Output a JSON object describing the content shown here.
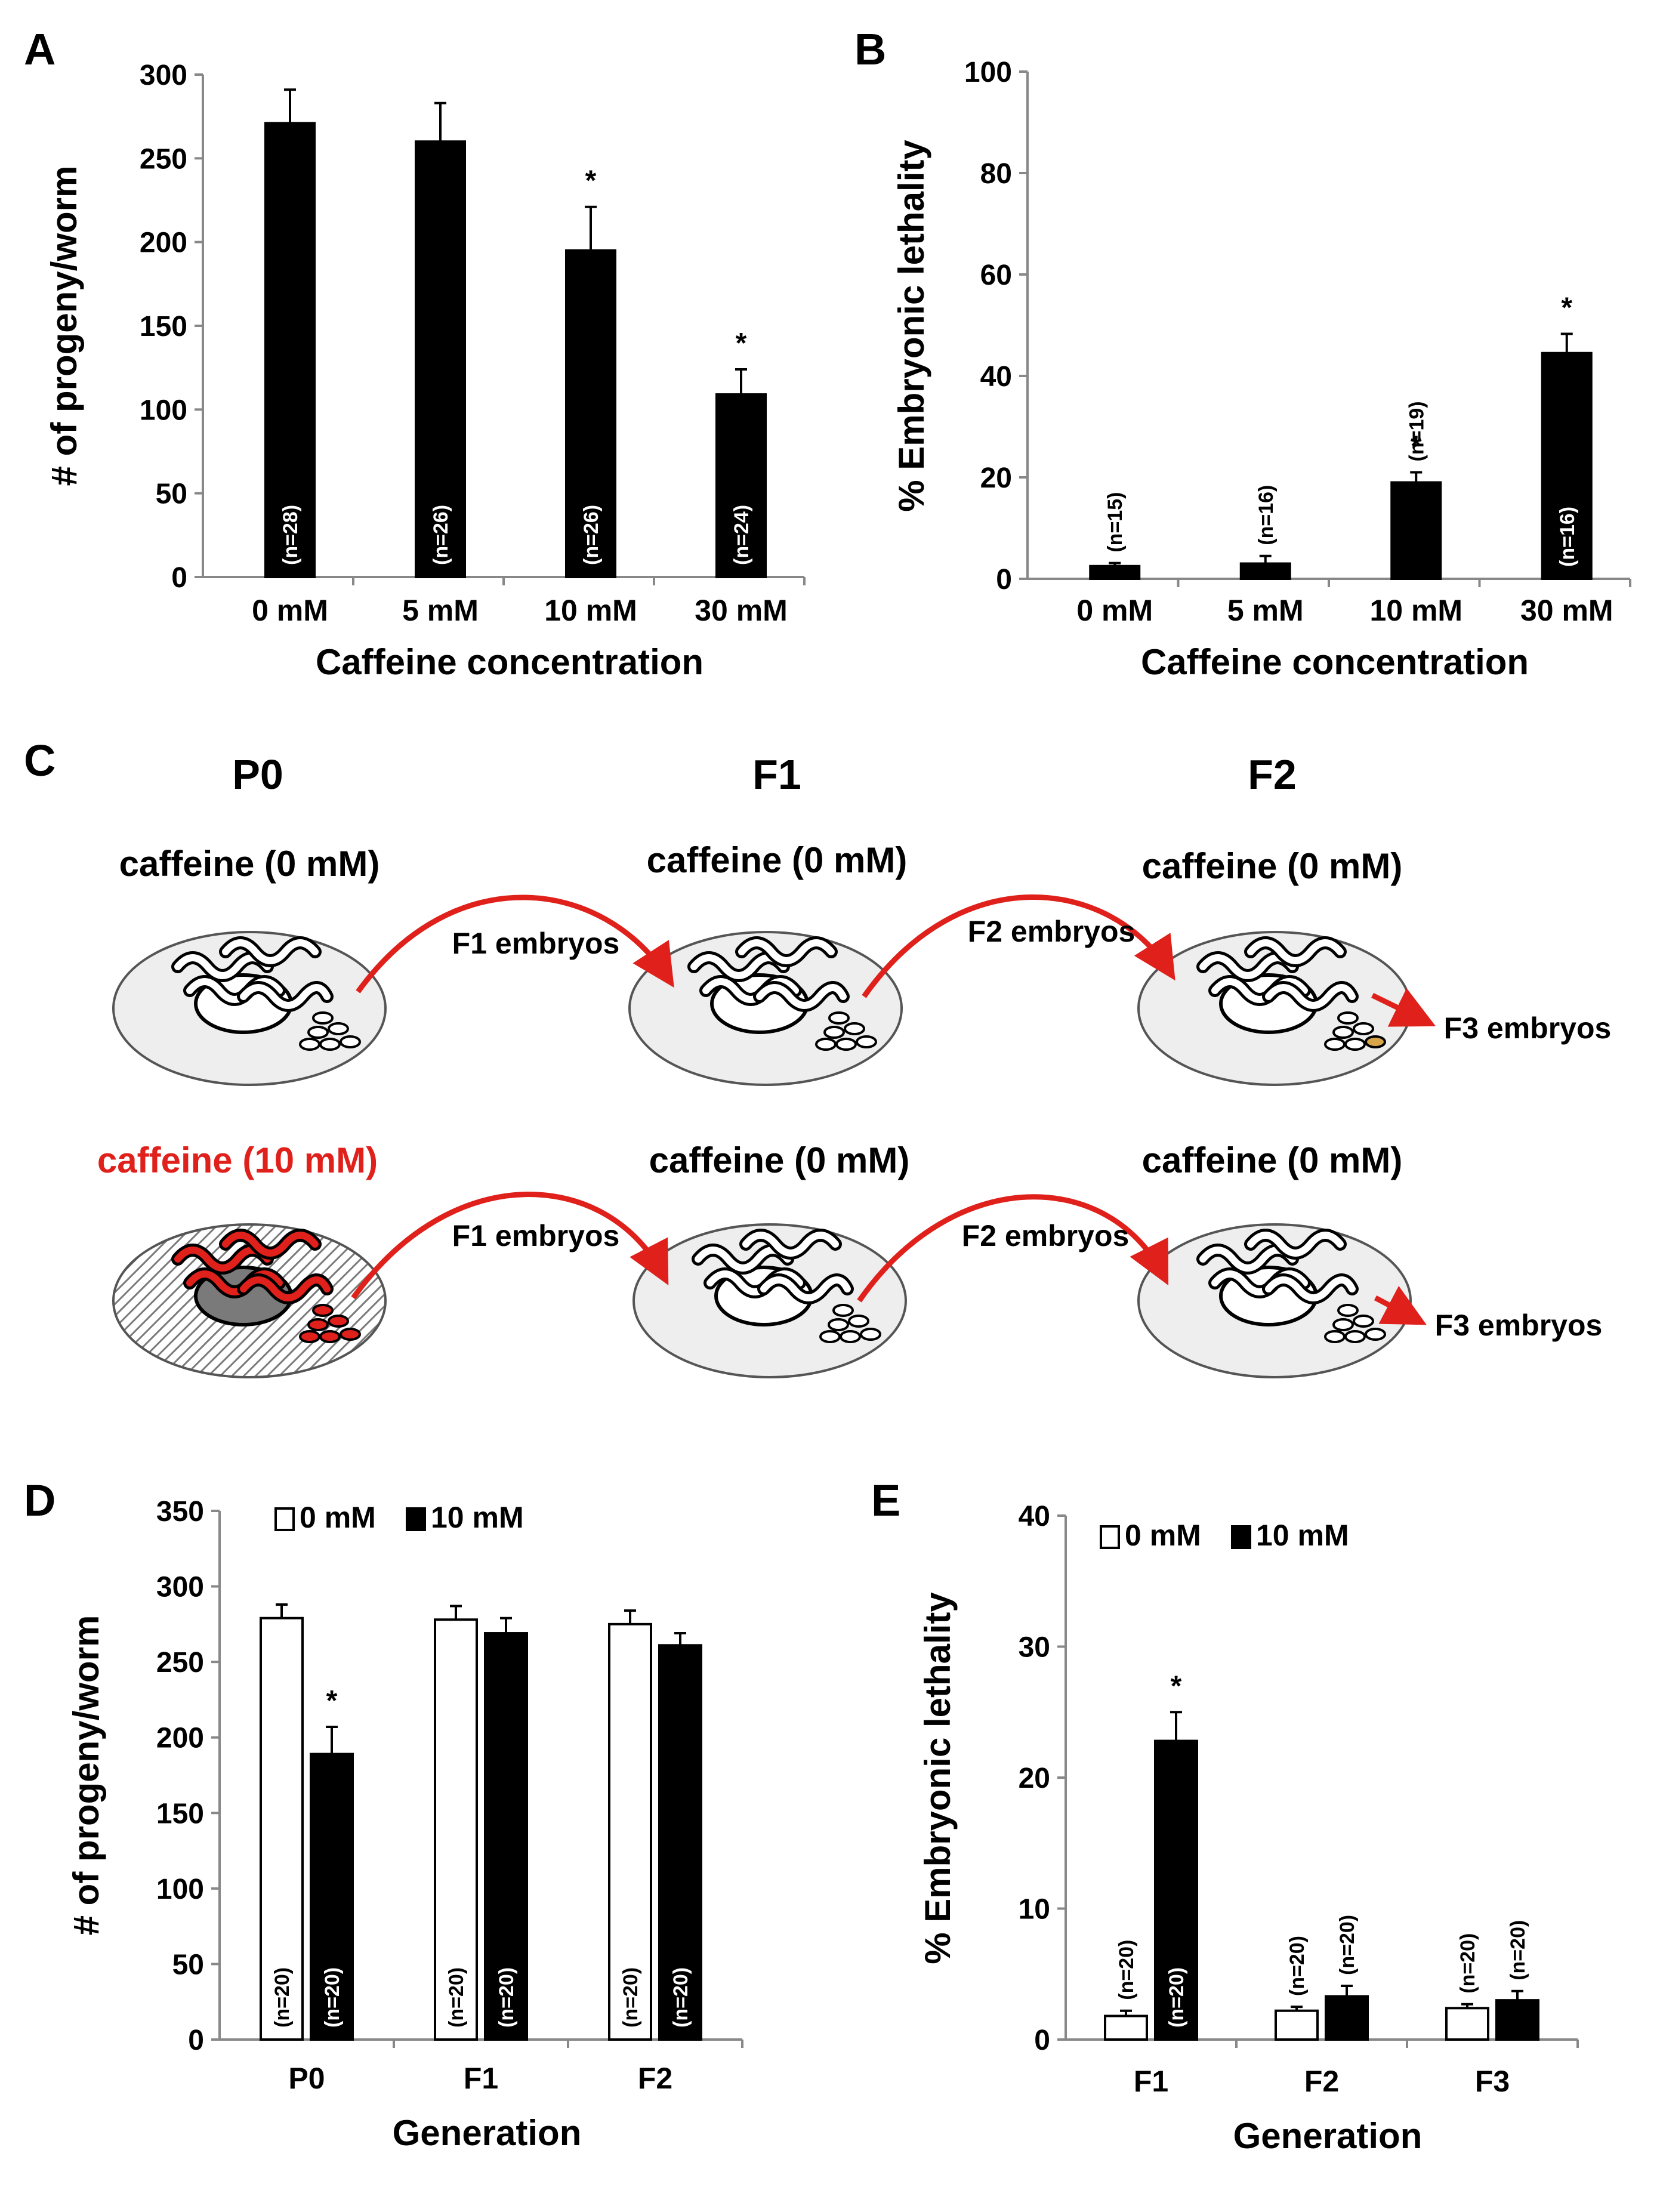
{
  "chart_data": [
    {
      "panel": "A",
      "type": "bar",
      "categories": [
        "0 mM",
        "5 mM",
        "10 mM",
        "30 mM"
      ],
      "values": [
        271,
        260,
        195,
        109
      ],
      "errors": [
        20,
        23,
        26,
        15
      ],
      "n_labels": [
        "(n=28)",
        "(n=26)",
        "(n=26)",
        "(n=24)"
      ],
      "significant": [
        false,
        false,
        true,
        true
      ],
      "xlabel": "Caffeine concentration",
      "ylabel": "# of progeny/worm",
      "ylim": [
        0,
        300
      ],
      "yticks": [
        "0",
        "50",
        "100",
        "150",
        "200",
        "250",
        "300"
      ],
      "bar_color": "#000000"
    },
    {
      "panel": "B",
      "type": "bar",
      "categories": [
        "0 mM",
        "5 mM",
        "10 mM",
        "30 mM"
      ],
      "values": [
        2.5,
        3,
        19,
        44.5
      ],
      "errors": [
        0.6,
        1.5,
        2,
        3.8
      ],
      "n_labels": [
        "(n=15)",
        "(n=16)",
        "(n=19)",
        "(n=16)"
      ],
      "significant": [
        false,
        false,
        true,
        true
      ],
      "xlabel": "Caffeine concentration",
      "ylabel": "% Embryonic lethality",
      "ylim": [
        0,
        100
      ],
      "yticks": [
        "0",
        "20",
        "40",
        "60",
        "80",
        "100"
      ],
      "bar_color": "#000000"
    },
    {
      "panel": "D",
      "type": "bar",
      "categories": [
        "P0",
        "F1",
        "F2"
      ],
      "series": [
        {
          "name": "0 mM",
          "values": [
            279,
            278,
            275
          ],
          "errors": [
            9,
            9,
            9
          ],
          "color": "#ffffff",
          "n_labels": [
            "(n=20)",
            "(n=20)",
            "(n=20)"
          ],
          "significant": [
            false,
            false,
            false
          ]
        },
        {
          "name": "10 mM",
          "values": [
            189,
            269,
            261
          ],
          "errors": [
            18,
            10,
            8
          ],
          "color": "#000000",
          "n_labels": [
            "(n=20)",
            "(n=20)",
            "(n=20)"
          ],
          "significant": [
            true,
            false,
            false
          ]
        }
      ],
      "xlabel": "Generation",
      "ylabel": "# of progeny/worm",
      "ylim": [
        0,
        350
      ],
      "yticks": [
        "0",
        "50",
        "100",
        "150",
        "200",
        "250",
        "300",
        "350"
      ],
      "legend": "top-left"
    },
    {
      "panel": "E",
      "type": "bar",
      "categories": [
        "F1",
        "F2",
        "F3"
      ],
      "series": [
        {
          "name": "0 mM",
          "values": [
            1.8,
            2.2,
            2.4
          ],
          "errors": [
            0.4,
            0.3,
            0.3
          ],
          "color": "#ffffff",
          "n_labels": [
            "(n=20)",
            "(n=20)",
            "(n=20)"
          ],
          "significant": [
            false,
            false,
            false
          ]
        },
        {
          "name": "10 mM",
          "values": [
            22.8,
            3.3,
            3.0
          ],
          "errors": [
            2.2,
            0.8,
            0.7
          ],
          "color": "#000000",
          "n_labels": [
            "(n=20)",
            "(n=20)",
            "(n=20)"
          ],
          "significant": [
            true,
            false,
            false
          ]
        }
      ],
      "xlabel": "Generation",
      "ylabel": "% Embryonic lethality",
      "ylim": [
        0,
        40
      ],
      "yticks": [
        "0",
        "10",
        "20",
        "30",
        "40"
      ],
      "legend": "top-left"
    }
  ],
  "panel_labels": {
    "a": "A",
    "b": "B",
    "c": "C",
    "d": "D",
    "e": "E"
  },
  "star": "*",
  "diagram": {
    "generations": [
      "P0",
      "F1",
      "F2"
    ],
    "row1": {
      "conditions": [
        "caffeine (0 mM)",
        "caffeine (0 mM)",
        "caffeine (0 mM)"
      ],
      "arrows": [
        "F1 embryos",
        "F2 embryos",
        "F3 embryos"
      ]
    },
    "row2": {
      "conditions": [
        "caffeine (10 mM)",
        "caffeine (0 mM)",
        "caffeine (0 mM)"
      ],
      "arrows": [
        "F1 embryos",
        "F2 embryos",
        "F3 embryos"
      ]
    },
    "colors": {
      "plate": "#eeeeee",
      "arrow": "#e0201b",
      "treated_text": "#e0201b",
      "treated_worm": "#e0201b"
    }
  }
}
